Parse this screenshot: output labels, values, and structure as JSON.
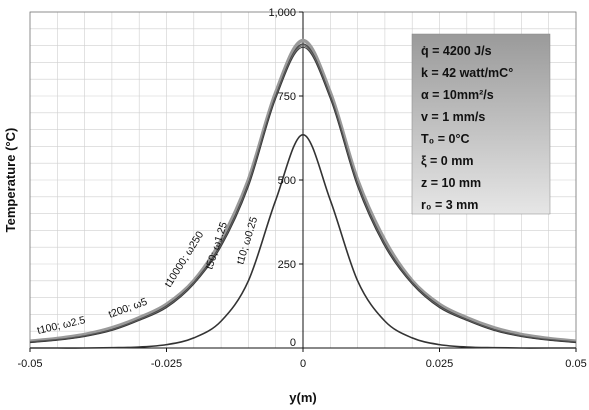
{
  "chart_data": {
    "type": "line",
    "title": "",
    "xlabel": "y(m)",
    "ylabel": "Temperature (°C)",
    "xlim": [
      -0.05,
      0.05
    ],
    "ylim": [
      0,
      1000
    ],
    "x_ticks": [
      -0.05,
      -0.025,
      0,
      0.025,
      0.05
    ],
    "x_tick_labels": [
      "-0.05",
      "-0.025",
      "0",
      "0.025",
      "0.05"
    ],
    "y_ticks": [
      0,
      250,
      500,
      750,
      1000
    ],
    "y_tick_labels": [
      "0",
      "250",
      "500",
      "750",
      "1,000"
    ],
    "grid": true,
    "x": [
      -0.05,
      -0.045,
      -0.04,
      -0.035,
      -0.03,
      -0.025,
      -0.02,
      -0.015,
      -0.01,
      -0.005,
      0,
      0.005,
      0.01,
      0.015,
      0.02,
      0.025,
      0.03,
      0.035,
      0.04,
      0.045,
      0.05
    ],
    "series": [
      {
        "name": "t100; ω2.5",
        "color": "#9a9a9a",
        "values": [
          20,
          28,
          40,
          60,
          90,
          130,
          200,
          320,
          500,
          760,
          915,
          760,
          500,
          320,
          200,
          130,
          90,
          60,
          40,
          28,
          20
        ]
      },
      {
        "name": "t200; ω5",
        "color": "#4a4a4a",
        "values": [
          18,
          25,
          36,
          55,
          85,
          125,
          195,
          310,
          490,
          750,
          905,
          750,
          490,
          310,
          195,
          125,
          85,
          55,
          36,
          25,
          18
        ]
      },
      {
        "name": "t10000; ω250",
        "color": "#6a6a6a",
        "values": [
          17,
          24,
          35,
          53,
          83,
          122,
          192,
          305,
          485,
          745,
          900,
          745,
          485,
          305,
          192,
          122,
          83,
          53,
          35,
          24,
          17
        ]
      },
      {
        "name": "t50; ω1.25",
        "color": "#3a3a3a",
        "values": [
          16,
          23,
          34,
          52,
          82,
          120,
          190,
          302,
          480,
          742,
          895,
          742,
          480,
          302,
          190,
          120,
          82,
          52,
          34,
          23,
          16
        ]
      },
      {
        "name": "t10; ω0.25",
        "color": "#333333",
        "values": [
          0,
          0,
          0,
          1,
          3,
          10,
          30,
          80,
          200,
          440,
          635,
          440,
          200,
          80,
          30,
          10,
          3,
          1,
          0,
          0,
          0
        ]
      }
    ],
    "curve_labels": [
      "t100; ω2.5",
      "t200; ω5",
      "t10000; ω250",
      "t50; ω1.25",
      "t10; ω0.25"
    ],
    "legend": {
      "placement": "top-right",
      "lines": [
        "q̇ = 4200 J/s",
        "k = 42 watt/mC°",
        "α = 10mm²/s",
        "v = 1 mm/s",
        "T₀ = 0°C",
        "ξ = 0 mm",
        "z = 10 mm",
        "r₀ = 3 mm"
      ]
    }
  }
}
